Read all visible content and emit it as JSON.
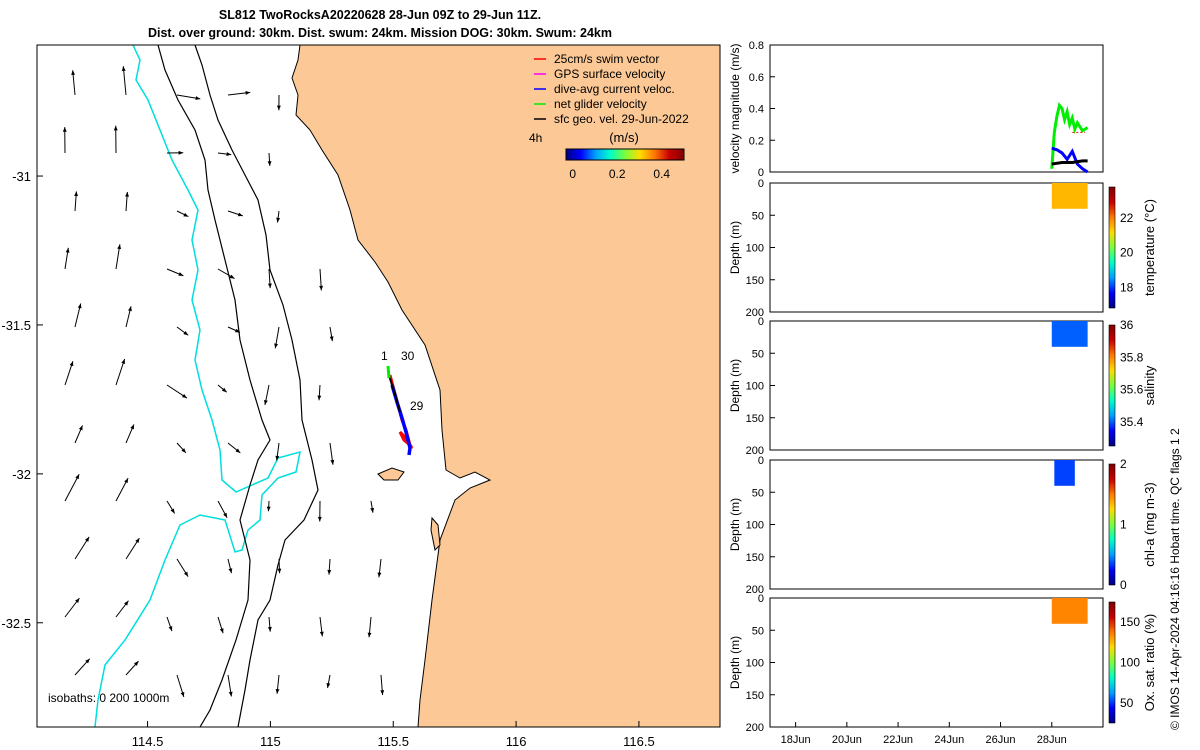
{
  "title": {
    "line1": "SL812 TwoRocksA20220628 28-Jun 09Z to 29-Jun 11Z.",
    "line2": "Dist. over ground: 30km. Dist. swum: 24km. Mission DOG: 30km. Swum: 24km"
  },
  "colors": {
    "land": "#fbc896",
    "isobath_0": "#00dede",
    "contour": "#000000",
    "swim_vector": "#ff0000",
    "gps_velocity": "#ff00ff",
    "dive_avg": "#0000ff",
    "net_glider": "#00ee00",
    "geo_vel": "#000000"
  },
  "map": {
    "lon_ticks": [
      "114.5",
      "115",
      "115.5",
      "116",
      "116.5"
    ],
    "lat_ticks": [
      "-31",
      "-31.5",
      "-32",
      "-32.5"
    ],
    "lon_range": [
      114.05,
      116.83
    ],
    "lat_range": [
      -30.56,
      -32.85
    ],
    "legend": [
      {
        "label": "25cm/s swim vector",
        "color_key": "swim_vector"
      },
      {
        "label": "GPS surface velocity",
        "color_key": "gps_velocity"
      },
      {
        "label": "dive-avg current veloc.",
        "color_key": "dive_avg"
      },
      {
        "label": "net glider velocity",
        "color_key": "net_glider"
      },
      {
        "label": "sfc geo. vel. 29-Jun-2022",
        "color_key": "geo_vel"
      }
    ],
    "colorbar": {
      "title": "(m/s)",
      "ticks": [
        "0",
        "0.2",
        "0.4"
      ],
      "range": [
        -0.03,
        0.5
      ],
      "side_label": "4h"
    },
    "track_labels": [
      "1",
      "30",
      "29"
    ],
    "isobath_label": "isobaths: 0   200  1000m"
  },
  "chart_data": [
    {
      "type": "line",
      "ylabel": "velocity magnitude (m/s)",
      "yticks": [
        "0",
        "0.2",
        "0.4",
        "0.6",
        "0.8"
      ],
      "ylim": [
        0,
        0.8
      ],
      "xlim": [
        "17-Jun",
        "30-Jun"
      ],
      "series": [
        {
          "color_key": "net_glider",
          "x": [
            "28.0",
            "28.1",
            "28.2",
            "28.3",
            "28.4",
            "28.5",
            "28.6",
            "28.7",
            "28.8",
            "28.9",
            "29.0",
            "29.2",
            "29.4"
          ],
          "y": [
            0.02,
            0.25,
            0.35,
            0.42,
            0.4,
            0.33,
            0.38,
            0.3,
            0.34,
            0.27,
            0.31,
            0.26,
            0.28
          ]
        },
        {
          "color_key": "dive_avg",
          "x": [
            "28.0",
            "28.2",
            "28.4",
            "28.6",
            "28.8",
            "29.0",
            "29.2",
            "29.4"
          ],
          "y": [
            0.15,
            0.14,
            0.12,
            0.08,
            0.13,
            0.05,
            0.02,
            0.0
          ]
        },
        {
          "color_key": "geo_vel",
          "x": [
            "28.0",
            "28.4",
            "28.8",
            "29.2",
            "29.4"
          ],
          "y": [
            0.05,
            0.06,
            0.06,
            0.07,
            0.07
          ]
        },
        {
          "color_key": "swim_vector",
          "x": [
            "28.8",
            "29.0",
            "29.3"
          ],
          "y": [
            0.25,
            0.25,
            0.25
          ]
        }
      ]
    },
    {
      "type": "heatmap",
      "ylabel": "Depth (m)",
      "clabel": "temperature (°C)",
      "yticks": [
        "0",
        "50",
        "100",
        "150",
        "200"
      ],
      "ylim": [
        0,
        200
      ],
      "cticks": [
        "18",
        "20",
        "22"
      ],
      "clim": [
        16.8,
        23.8
      ],
      "patch": {
        "x": [
          "28.0",
          "29.4"
        ],
        "depth": [
          0,
          40
        ],
        "value": 21.5
      }
    },
    {
      "type": "heatmap",
      "ylabel": "Depth (m)",
      "clabel": "salinity",
      "yticks": [
        "0",
        "50",
        "100",
        "150",
        "200"
      ],
      "ylim": [
        0,
        200
      ],
      "cticks": [
        "35.4",
        "35.6",
        "35.8",
        "36"
      ],
      "clim": [
        35.25,
        36.0
      ],
      "patch": {
        "x": [
          "28.0",
          "29.4"
        ],
        "depth": [
          0,
          40
        ],
        "value": 35.4
      }
    },
    {
      "type": "heatmap",
      "ylabel": "Depth (m)",
      "clabel": "chl-a (mg m-3)",
      "yticks": [
        "0",
        "50",
        "100",
        "150",
        "200"
      ],
      "ylim": [
        0,
        200
      ],
      "cticks": [
        "0",
        "1",
        "2"
      ],
      "clim": [
        0,
        2
      ],
      "patch": {
        "x": [
          "28.1",
          "28.9"
        ],
        "depth": [
          0,
          40
        ],
        "value": 0.35
      }
    },
    {
      "type": "heatmap",
      "ylabel": "Depth (m)",
      "clabel": "Ox. sat. ratio (%)",
      "yticks": [
        "0",
        "50",
        "100",
        "150",
        "200"
      ],
      "ylim": [
        0,
        200
      ],
      "cticks": [
        "50",
        "100",
        "150"
      ],
      "clim": [
        25,
        175
      ],
      "patch": {
        "x": [
          "28.0",
          "29.4"
        ],
        "depth": [
          0,
          40
        ],
        "value": 135
      },
      "xticks": [
        "18Jun",
        "20Jun",
        "22Jun",
        "24Jun",
        "26Jun",
        "28Jun"
      ]
    }
  ],
  "copyright": "© IMOS 14-Apr-2024 04:16:16 Hobart time. QC flags 1  2"
}
